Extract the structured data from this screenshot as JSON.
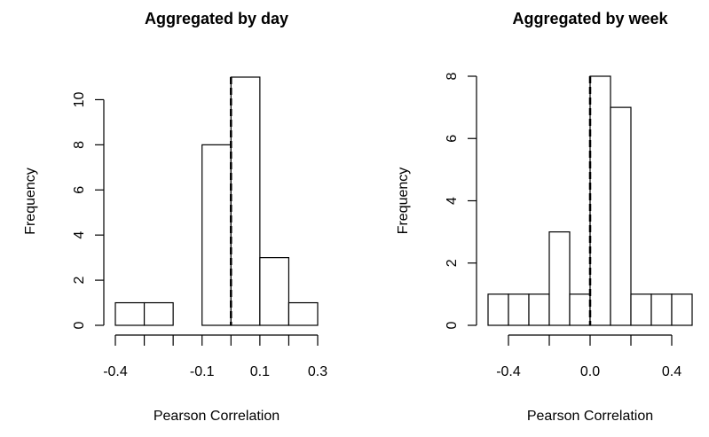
{
  "chart_data": [
    {
      "type": "histogram",
      "title": "Aggregated by day",
      "x_label": "Pearson Correlation",
      "y_label": "Frequency",
      "bins": [
        -0.4,
        -0.3,
        -0.2,
        -0.1,
        0,
        0.1,
        0.2,
        0.3
      ],
      "values": [
        1,
        1,
        0,
        8,
        11,
        3,
        1
      ],
      "xlim": [
        -0.4,
        0.3
      ],
      "ylim": [
        0,
        11
      ],
      "xticks": [
        -0.4,
        {
          "value": -0.3,
          "label": null
        },
        {
          "value": -0.2,
          "label": null
        },
        -0.1,
        {
          "value": 0,
          "label": null
        },
        0.1,
        {
          "value": 0.2,
          "label": null
        },
        0.3
      ],
      "yticks": [
        0,
        2,
        4,
        6,
        8,
        10
      ],
      "vline": 0,
      "color": "#ffffff"
    },
    {
      "type": "histogram",
      "title": "Aggregated by week",
      "x_label": "Pearson Correlation",
      "y_label": "Frequency",
      "bins": [
        -0.5,
        -0.4,
        -0.3,
        -0.2,
        -0.1,
        0,
        0.1,
        0.2,
        0.3,
        0.4,
        0.5
      ],
      "values": [
        1,
        1,
        1,
        3,
        1,
        8,
        7,
        1,
        1,
        1
      ],
      "xlim": [
        -0.5,
        0.5
      ],
      "ylim": [
        0,
        8
      ],
      "xticks": [
        -0.4,
        {
          "value": -0.2,
          "label": null
        },
        {
          "value": 0,
          "label": "0.0"
        },
        {
          "value": 0.2,
          "label": null
        },
        0.4
      ],
      "yticks": [
        0,
        2,
        4,
        6,
        8
      ],
      "vline": 0,
      "color": "#ffffff"
    }
  ]
}
